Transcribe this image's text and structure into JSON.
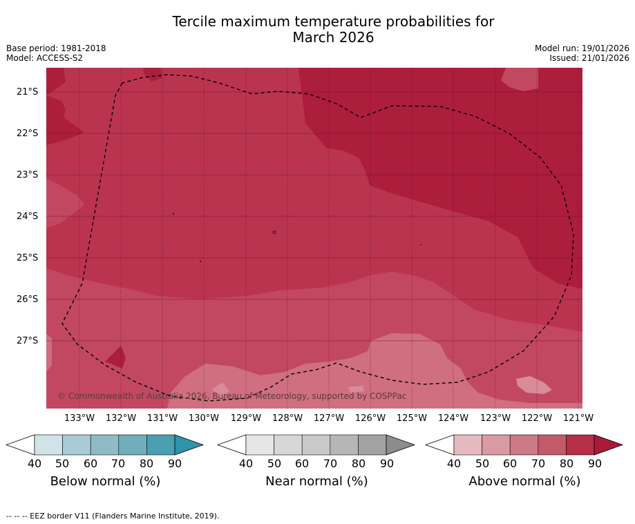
{
  "title_line1": "Tercile maximum temperature probabilities for",
  "title_line2": "March 2026",
  "base_period": "Base period: 1981-2018",
  "model": "Model: ACCESS-S2",
  "model_run": "Model run: 19/01/2026",
  "issued": "Issued: 21/01/2026",
  "lat_labels": [
    "21°S",
    "22°S",
    "23°S",
    "24°S",
    "25°S",
    "26°S",
    "27°S"
  ],
  "lon_labels": [
    "133°W",
    "132°W",
    "131°W",
    "130°W",
    "129°W",
    "128°W",
    "127°W",
    "126°W",
    "125°W",
    "124°W",
    "123°W",
    "122°W",
    "121°W"
  ],
  "copyright": "© Commonwealth of Australia 2026, Bureau of Meteorology, supported by COSPPac",
  "colorbars": [
    {
      "title": "Below normal (%)",
      "ticks": [
        "40",
        "50",
        "60",
        "70",
        "80",
        "90"
      ],
      "colors": [
        "#cfe3e8",
        "#a9cbd3",
        "#8ebbc6",
        "#70aebc",
        "#4a9fb1",
        "#2f93a9"
      ]
    },
    {
      "title": "Near normal (%)",
      "ticks": [
        "40",
        "50",
        "60",
        "70",
        "80",
        "90"
      ],
      "colors": [
        "#e6e6e6",
        "#d7d7d7",
        "#c9c9c9",
        "#b6b6b6",
        "#a2a2a2",
        "#8c8c8c"
      ]
    },
    {
      "title": "Above normal (%)",
      "ticks": [
        "40",
        "50",
        "60",
        "70",
        "80",
        "90"
      ],
      "colors": [
        "#e6b9c0",
        "#d99aa3",
        "#cc7a86",
        "#c25a6a",
        "#b72e47",
        "#a8193a"
      ]
    }
  ],
  "footnote": "-- -- -- EEZ border V11 (Flanders Marine Institute, 2019).",
  "colors": {
    "cat80": "#b72e47",
    "cat70": "#c25a6a",
    "cat60": "#cc7a86",
    "cat90": "#a8193a"
  }
}
